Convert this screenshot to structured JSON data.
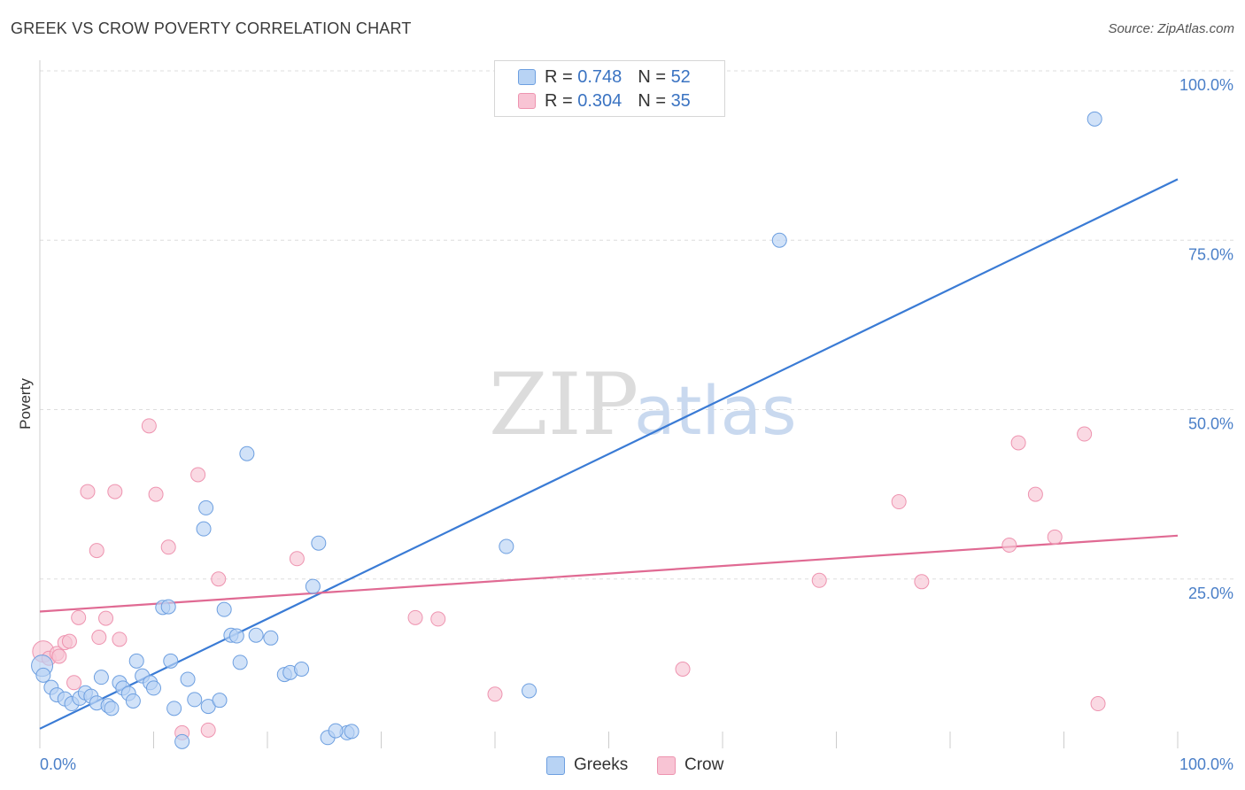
{
  "header": {
    "title": "GREEK VS CROW POVERTY CORRELATION CHART",
    "source": "Source: ZipAtlas.com"
  },
  "watermark": {
    "zip": "ZIP",
    "atlas": "atlas"
  },
  "colors": {
    "greeks_fill": "#b8d3f4",
    "greeks_stroke": "#6d9fe0",
    "greeks_line": "#3a7bd5",
    "crow_fill": "#f8c4d4",
    "crow_stroke": "#ee94b0",
    "crow_line": "#e06a93",
    "grid": "#dddddd",
    "tick_text": "#4a7fc8"
  },
  "legend_top": {
    "rows": [
      {
        "r_label": "R =",
        "r_value": "0.748",
        "n_label": "N =",
        "n_value": "52"
      },
      {
        "r_label": "R =",
        "r_value": "0.304",
        "n_label": "N =",
        "n_value": "35"
      }
    ]
  },
  "chart_data": {
    "type": "scatter",
    "title": "GREEK VS CROW POVERTY CORRELATION CHART",
    "xlabel": "",
    "ylabel": "Poverty",
    "xlim": [
      0,
      100
    ],
    "ylim": [
      0,
      100
    ],
    "x_tick_labels": [
      "0.0%",
      "100.0%"
    ],
    "y_ticks": [
      25,
      50,
      75,
      100
    ],
    "y_tick_labels": [
      "25.0%",
      "50.0%",
      "75.0%",
      "100.0%"
    ],
    "legend_position": "bottom-center",
    "series": [
      {
        "name": "Greeks",
        "r": 0.748,
        "n": 52,
        "trend": {
          "x0": 0,
          "y0": 2.9,
          "x1": 100,
          "y1": 84.0
        },
        "points": [
          [
            0.2,
            12.2
          ],
          [
            0.3,
            10.8
          ],
          [
            1.0,
            9.0
          ],
          [
            1.5,
            7.9
          ],
          [
            2.2,
            7.3
          ],
          [
            2.8,
            6.6
          ],
          [
            3.5,
            7.4
          ],
          [
            4.0,
            8.2
          ],
          [
            4.5,
            7.7
          ],
          [
            5.0,
            6.7
          ],
          [
            5.4,
            10.5
          ],
          [
            6.0,
            6.3
          ],
          [
            6.3,
            5.9
          ],
          [
            7.0,
            9.7
          ],
          [
            7.3,
            8.9
          ],
          [
            7.8,
            8.1
          ],
          [
            8.2,
            7.0
          ],
          [
            8.5,
            12.9
          ],
          [
            9.0,
            10.7
          ],
          [
            9.7,
            9.7
          ],
          [
            10.0,
            8.9
          ],
          [
            10.8,
            20.8
          ],
          [
            11.3,
            20.9
          ],
          [
            11.5,
            12.9
          ],
          [
            11.8,
            5.9
          ],
          [
            12.5,
            1.0
          ],
          [
            13.0,
            10.2
          ],
          [
            13.6,
            7.2
          ],
          [
            14.4,
            32.4
          ],
          [
            14.8,
            6.2
          ],
          [
            14.6,
            35.5
          ],
          [
            15.8,
            7.1
          ],
          [
            16.2,
            20.5
          ],
          [
            16.8,
            16.7
          ],
          [
            17.3,
            16.6
          ],
          [
            17.6,
            12.7
          ],
          [
            18.2,
            43.5
          ],
          [
            19.0,
            16.7
          ],
          [
            20.3,
            16.3
          ],
          [
            21.5,
            10.9
          ],
          [
            22.0,
            11.2
          ],
          [
            23.0,
            11.7
          ],
          [
            24.0,
            23.9
          ],
          [
            24.5,
            30.3
          ],
          [
            25.3,
            1.6
          ],
          [
            27.0,
            2.3
          ],
          [
            27.4,
            2.5
          ],
          [
            26.0,
            2.6
          ],
          [
            41.0,
            29.8
          ],
          [
            43.0,
            8.5
          ],
          [
            65.0,
            75.0
          ],
          [
            92.7,
            92.9
          ]
        ]
      },
      {
        "name": "Crow",
        "r": 0.304,
        "n": 35,
        "trend": {
          "x0": 0,
          "y0": 20.2,
          "x1": 100,
          "y1": 31.4
        },
        "points": [
          [
            0.3,
            14.3
          ],
          [
            0.8,
            13.3
          ],
          [
            1.5,
            14.0
          ],
          [
            1.7,
            13.6
          ],
          [
            2.2,
            15.6
          ],
          [
            2.6,
            15.8
          ],
          [
            3.0,
            9.7
          ],
          [
            3.4,
            19.3
          ],
          [
            4.2,
            37.9
          ],
          [
            5.0,
            29.2
          ],
          [
            5.2,
            16.4
          ],
          [
            5.8,
            19.2
          ],
          [
            6.6,
            37.9
          ],
          [
            7.0,
            16.1
          ],
          [
            9.6,
            47.6
          ],
          [
            10.2,
            37.5
          ],
          [
            11.3,
            29.7
          ],
          [
            12.5,
            2.3
          ],
          [
            13.9,
            40.4
          ],
          [
            14.8,
            2.7
          ],
          [
            15.7,
            25.0
          ],
          [
            22.6,
            28.0
          ],
          [
            33.0,
            19.3
          ],
          [
            35.0,
            19.1
          ],
          [
            40.0,
            8.0
          ],
          [
            56.5,
            11.7
          ],
          [
            68.5,
            24.8
          ],
          [
            75.5,
            36.4
          ],
          [
            77.5,
            24.6
          ],
          [
            85.2,
            30.0
          ],
          [
            86.0,
            45.1
          ],
          [
            87.5,
            37.5
          ],
          [
            89.2,
            31.2
          ],
          [
            91.8,
            46.4
          ],
          [
            93.0,
            6.6
          ]
        ]
      }
    ]
  },
  "legend_bottom": {
    "items": [
      {
        "label": "Greeks"
      },
      {
        "label": "Crow"
      }
    ]
  }
}
